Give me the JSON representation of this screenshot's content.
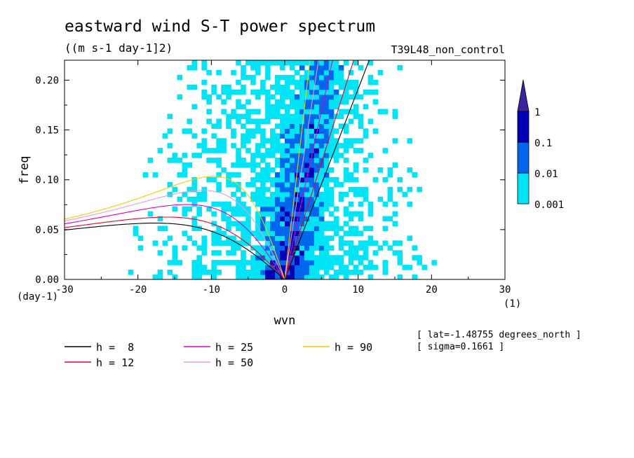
{
  "chart_data": {
    "type": "heatmap",
    "title": "eastward wind S-T power spectrum",
    "units": "((m s-1 day-1]2)",
    "run": "T39L48_non_control",
    "xlabel": "wvn",
    "ylabel": "freq",
    "x_unit": "(1)",
    "y_unit": "(day-1)",
    "xlim": [
      -30,
      30
    ],
    "ylim": [
      0,
      0.22
    ],
    "xticks": [
      "-30",
      "-20",
      "-10",
      "0",
      "10",
      "20",
      "30"
    ],
    "xtick_values": [
      -30,
      -20,
      -10,
      0,
      10,
      20,
      30
    ],
    "yticks": [
      "0.00",
      "0.05",
      "0.10",
      "0.15",
      "0.20"
    ],
    "ytick_values": [
      0,
      0.05,
      0.1,
      0.15,
      0.2
    ],
    "colorbar": {
      "levels": [
        "0.001",
        "0.01",
        "0.1",
        "1"
      ],
      "colors": [
        "#ffffff",
        "#00e5f5",
        "#0066ee",
        "#0000b4",
        "#3a22a0"
      ]
    },
    "dispersion_curves": [
      {
        "name": "h =  8",
        "h": 8,
        "color": "#000000"
      },
      {
        "name": "h = 12",
        "h": 12,
        "color": "#e8002a"
      },
      {
        "name": "h = 25",
        "h": 25,
        "color": "#dd00cc"
      },
      {
        "name": "h = 50",
        "h": 50,
        "color": "#e59ae2"
      },
      {
        "name": "h = 90",
        "h": 90,
        "color": "#f2cc00"
      }
    ],
    "info": [
      "[ lat=-1.48755 degrees_north ]",
      "[ sigma=0.1661 ]"
    ]
  }
}
